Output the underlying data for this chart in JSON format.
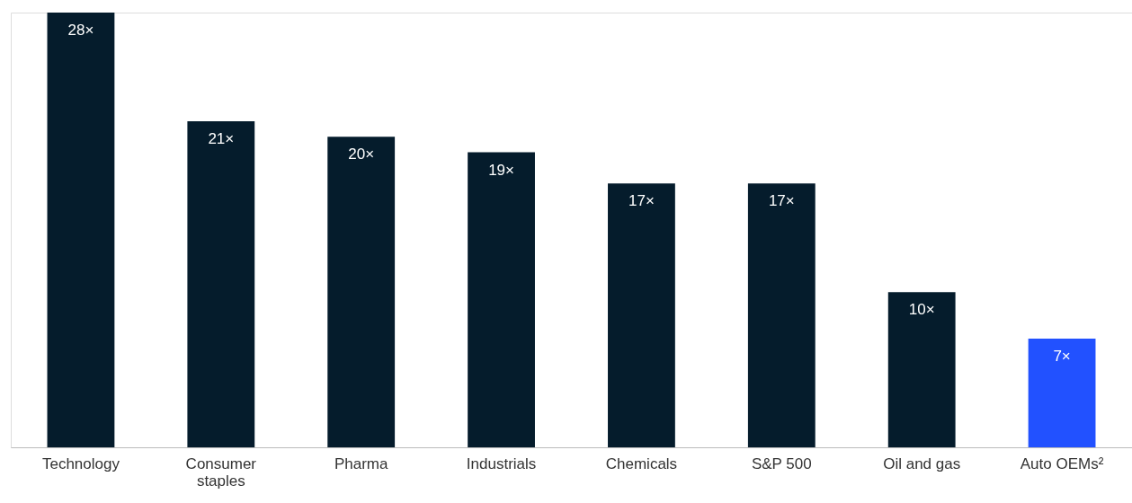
{
  "chart_data": {
    "type": "bar",
    "categories": [
      "Technology",
      "Consumer staples",
      "Pharma",
      "Industrials",
      "Chemicals",
      "S&P 500",
      "Oil and gas",
      "Auto OEMs²"
    ],
    "values": [
      28,
      21,
      20,
      19,
      17,
      17,
      10,
      7
    ],
    "value_labels": [
      "28×",
      "21×",
      "20×",
      "19×",
      "17×",
      "17×",
      "10×",
      "7×"
    ],
    "colors": [
      "#051c2c",
      "#051c2c",
      "#051c2c",
      "#051c2c",
      "#051c2c",
      "#051c2c",
      "#051c2c",
      "#2251ff"
    ],
    "ylim": [
      0,
      28
    ]
  }
}
